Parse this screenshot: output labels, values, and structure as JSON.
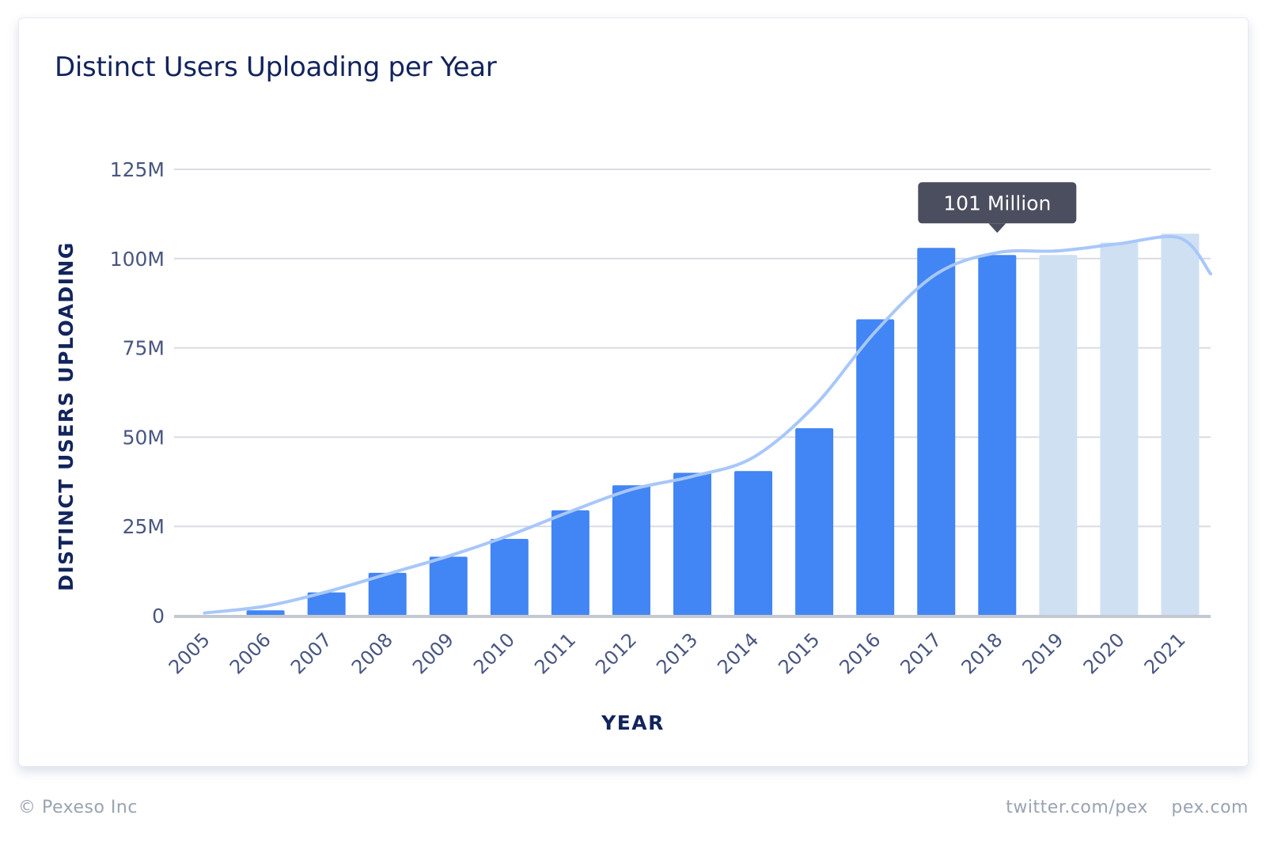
{
  "chart_data": {
    "type": "bar",
    "title": "Distinct Users Uploading per Year",
    "xlabel": "YEAR",
    "ylabel": "DISTINCT USERS UPLOADING",
    "categories": [
      "2005",
      "2006",
      "2007",
      "2008",
      "2009",
      "2010",
      "2011",
      "2012",
      "2013",
      "2014",
      "2015",
      "2016",
      "2017",
      "2018",
      "2019",
      "2020",
      "2021"
    ],
    "values": [
      0,
      1.5,
      6.5,
      12,
      16.5,
      21.5,
      29.5,
      36.5,
      40,
      40.5,
      52.5,
      83,
      103,
      101,
      101,
      104.5,
      107
    ],
    "projected": [
      false,
      false,
      false,
      false,
      false,
      false,
      false,
      false,
      false,
      false,
      false,
      false,
      false,
      false,
      true,
      true,
      true
    ],
    "yticks": [
      0,
      25,
      50,
      75,
      100,
      125
    ],
    "ytick_labels": [
      "0",
      "25M",
      "50M",
      "75M",
      "100M",
      "125M"
    ],
    "ylim": [
      0,
      125
    ],
    "grid": true,
    "trend_line": true,
    "tooltip": {
      "category": "2018",
      "text": "101 Million"
    },
    "colors": {
      "bar": "#4285f4",
      "bar_projected": "#cfe0f3",
      "trend": "#a8c7fa",
      "grid": "#d9dce3",
      "axis_text": "#4a5680",
      "label_text": "#13245c",
      "tooltip_bg": "#4b4e5e",
      "tooltip_text": "#ffffff"
    }
  },
  "footer": {
    "copyright": "© Pexeso Inc",
    "twitter": "twitter.com/pex",
    "site": "pex.com"
  }
}
